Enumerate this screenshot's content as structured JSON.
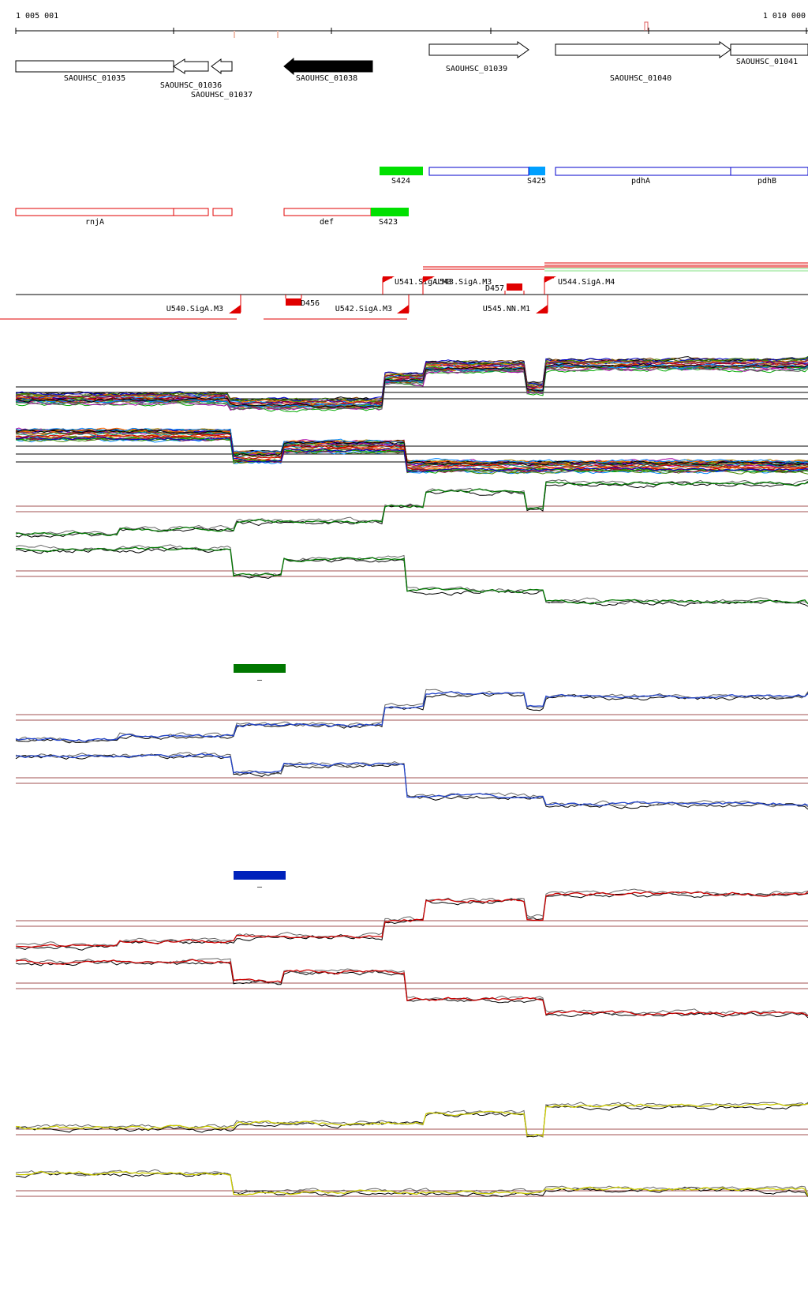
{
  "coords": {
    "start": "1 005 001",
    "end": "1 010 000"
  },
  "genes": [
    {
      "label": "SAOUHSC_01035",
      "strand": "+",
      "filled": false
    },
    {
      "label": "SAOUHSC_01036",
      "strand": "-",
      "filled": false
    },
    {
      "label": "SAOUHSC_01037",
      "strand": "-",
      "filled": false
    },
    {
      "label": "SAOUHSC_01038",
      "strand": "-",
      "filled": true
    },
    {
      "label": "SAOUHSC_01039",
      "strand": "+",
      "filled": false
    },
    {
      "label": "SAOUHSC_01040",
      "strand": "+",
      "filled": false
    },
    {
      "label": "SAOUHSC_01041",
      "strand": "+",
      "filled": false
    }
  ],
  "features_top": [
    {
      "label": "S424",
      "color": "#00e000"
    },
    {
      "label": "S425",
      "color": "#00a0ff"
    },
    {
      "label": "pdhA",
      "color": "#0000cc"
    },
    {
      "label": "pdhB",
      "color": "#0000cc"
    }
  ],
  "features_bottom": [
    {
      "label": "rnjA",
      "color": "#e00000"
    },
    {
      "label": "def",
      "color": "#e00000"
    },
    {
      "label": "S423",
      "color": "#00e000"
    }
  ],
  "promoters": [
    {
      "label": "U541.SigA.M3"
    },
    {
      "label": "U543.SigA.M3"
    },
    {
      "label": "D457"
    },
    {
      "label": "U544.SigA.M4"
    },
    {
      "label": "U540.SigA.M3"
    },
    {
      "label": "D456"
    },
    {
      "label": "U542.SigA.M3"
    },
    {
      "label": "U545.NN.M1"
    }
  ],
  "groups": [
    {
      "marker": "–",
      "color": "#007700"
    },
    {
      "marker": "–",
      "color": "#0022bb"
    }
  ],
  "colors": {
    "green_lines": "#007700",
    "blue_lines": "#2244cc",
    "red_lines": "#cc0000",
    "yellow_lines": "#cccc00",
    "threshold": "#a05050"
  }
}
